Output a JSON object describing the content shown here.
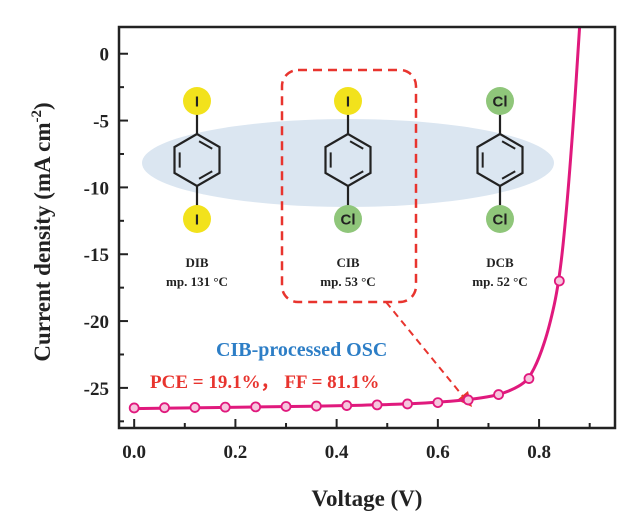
{
  "chart_data": {
    "type": "line",
    "xlabel": "Voltage (V)",
    "ylabel_main": "Current density (mA cm",
    "ylabel_sup": "-2",
    "ylabel_close": ")",
    "xlim": [
      -0.03,
      0.95
    ],
    "ylim": [
      -28,
      2
    ],
    "x_ticks": [
      0.0,
      0.2,
      0.4,
      0.6,
      0.8
    ],
    "x_tick_labels": [
      "0.0",
      "0.2",
      "0.4",
      "0.6",
      "0.8"
    ],
    "y_ticks": [
      0,
      -5,
      -10,
      -15,
      -20,
      -25
    ],
    "y_tick_labels": [
      "0",
      "-5",
      "-10",
      "-15",
      "-20",
      "-25"
    ],
    "series": [
      {
        "color": "#e0197d",
        "marker": "circle",
        "x": [
          0.0,
          0.06,
          0.12,
          0.18,
          0.24,
          0.3,
          0.36,
          0.42,
          0.48,
          0.54,
          0.6,
          0.66,
          0.72,
          0.78,
          0.84
        ],
        "y": [
          -26.5,
          -26.48,
          -26.46,
          -26.44,
          -26.42,
          -26.39,
          -26.36,
          -26.32,
          -26.27,
          -26.2,
          -26.1,
          -25.9,
          -25.5,
          -24.3,
          -17.0
        ],
        "curve_x": [
          0.0,
          0.1,
          0.2,
          0.3,
          0.4,
          0.5,
          0.55,
          0.6,
          0.65,
          0.7,
          0.73,
          0.76,
          0.78,
          0.8,
          0.82,
          0.84,
          0.855,
          0.87,
          0.88
        ],
        "curve_y": [
          -26.55,
          -26.5,
          -26.45,
          -26.4,
          -26.34,
          -26.25,
          -26.18,
          -26.08,
          -25.92,
          -25.68,
          -25.4,
          -24.9,
          -24.3,
          -22.8,
          -20.5,
          -17.0,
          -11.5,
          -4.0,
          2.0
        ]
      }
    ],
    "molecules": [
      {
        "name": "DIB",
        "mp": "mp. 131 °C",
        "top_atom": "I",
        "bottom_atom": "I",
        "top_color": "#f2e21c",
        "bottom_color": "#f2e21c"
      },
      {
        "name": "CIB",
        "mp": "mp. 53 °C",
        "top_atom": "I",
        "bottom_atom": "Cl",
        "top_color": "#f2e21c",
        "bottom_color": "#8fc67a"
      },
      {
        "name": "DCB",
        "mp": "mp. 52 °C",
        "top_atom": "Cl",
        "bottom_atom": "Cl",
        "top_color": "#8fc67a",
        "bottom_color": "#8fc67a"
      }
    ],
    "annotations": {
      "device": "CIB-processed OSC",
      "metrics": "PCE = 19.1%，  FF = 81.1%"
    },
    "colors": {
      "curve": "#e0197d",
      "highlight_box": "#e8342e",
      "ellipse": "#dbe6f1",
      "device_text": "#2d7ec6",
      "metrics_text": "#e8342e"
    }
  }
}
